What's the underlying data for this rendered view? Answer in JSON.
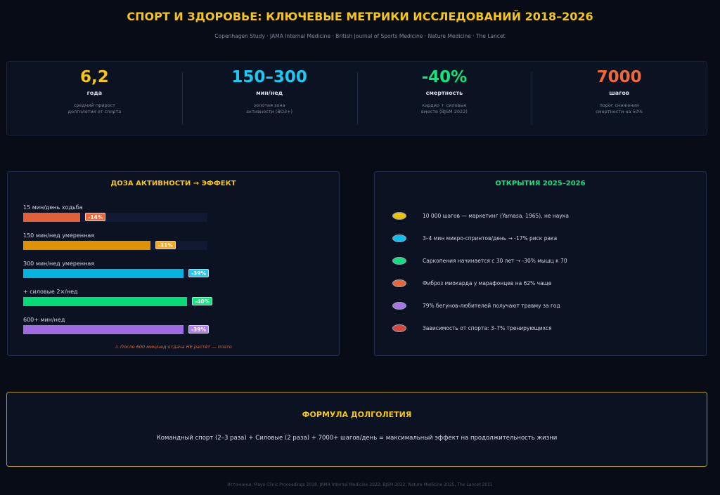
{
  "title": "СПОРТ И ЗДОРОВЬЕ: КЛЮЧЕВЫЕ МЕТРИКИ ИССЛЕДОВАНИЙ 2018–2026",
  "subtitle": "Copenhagen Study · JAMA Internal Medicine · British Journal of Sports Medicine · Nature Medicine · The Lancet",
  "stats": [
    {
      "value": "6,2",
      "unit": "года",
      "desc1": "средний прирост",
      "desc2": "долголетия от спорта",
      "color": "#f5c518"
    },
    {
      "value": "150–300",
      "unit": "мин/нед",
      "desc1": "золотая зона",
      "desc2": "активности (ВОЗ+)",
      "color": "#1ec8f0"
    },
    {
      "value": "-40%",
      "unit": "смертность",
      "desc1": "кардио + силовые",
      "desc2": "вместе (BJSM 2022)",
      "color": "#14e27a"
    },
    {
      "value": "7000",
      "unit": "шагов",
      "desc1": "порог снижения",
      "desc2": "смертности на 50%",
      "color": "#f2673a"
    }
  ],
  "dose": {
    "title": "ДОЗА АКТИВНОСТИ → ЭФФЕКТ",
    "rows": [
      {
        "label": "15 мин/день ходьба",
        "effect": "-14%",
        "fill_pct": 31,
        "color": "#e0603a",
        "badge": "#f2673a"
      },
      {
        "label": "150 мин/нед умеренная",
        "effect": "-31%",
        "fill_pct": 69,
        "color": "#e09205",
        "badge": "#f5a623"
      },
      {
        "label": "300 мин/нед умеренная",
        "effect": "-39%",
        "fill_pct": 87,
        "color": "#05b2e0",
        "badge": "#1ec8f0"
      },
      {
        "label": "+ силовые 2×/нед",
        "effect": "-40%",
        "fill_pct": 89,
        "color": "#06db78",
        "badge": "#14e27a"
      },
      {
        "label": "600+ мин/нед",
        "effect": "-39%",
        "fill_pct": 87,
        "color": "#a06ae0",
        "badge": "#b57cf0"
      }
    ],
    "note": "⚠ После 600 мин/нед отдача НЕ растёт — плато"
  },
  "discoveries": {
    "title": "ОТКРЫТИЯ 2025–2026",
    "items": [
      {
        "text": "10 000 шагов — маркетинг (Yamasa, 1965), не наука",
        "color": "#e8c20a"
      },
      {
        "text": "3–4 мин микро-спринтов/день → -17% риск рака",
        "color": "#0dbff0"
      },
      {
        "text": "Саркопения начинается с 30 лет → -30% мышц к 70",
        "color": "#12df7c"
      },
      {
        "text": "Фиброз миокарда у марафонцев на 62% чаще",
        "color": "#e8683a"
      },
      {
        "text": "79% бегунов-любителей получают травму за год",
        "color": "#a874e8"
      },
      {
        "text": "Зависимость от спорта: 3–7% тренирующихся",
        "color": "#d8483a"
      }
    ]
  },
  "formula": {
    "title": "ФОРМУЛА ДОЛГОЛЕТИЯ",
    "text": "Командный спорт (2–3 раза) + Силовые (2 раза) + 7000+ шагов/день = максимальный эффект на продолжительность жизни"
  },
  "footer": "Источники: Mayo Clinic Proceedings 2018, JAMA Internal Medicine 2022, BJSM 2022, Nature Medicine 2025, The Lancet 2011"
}
